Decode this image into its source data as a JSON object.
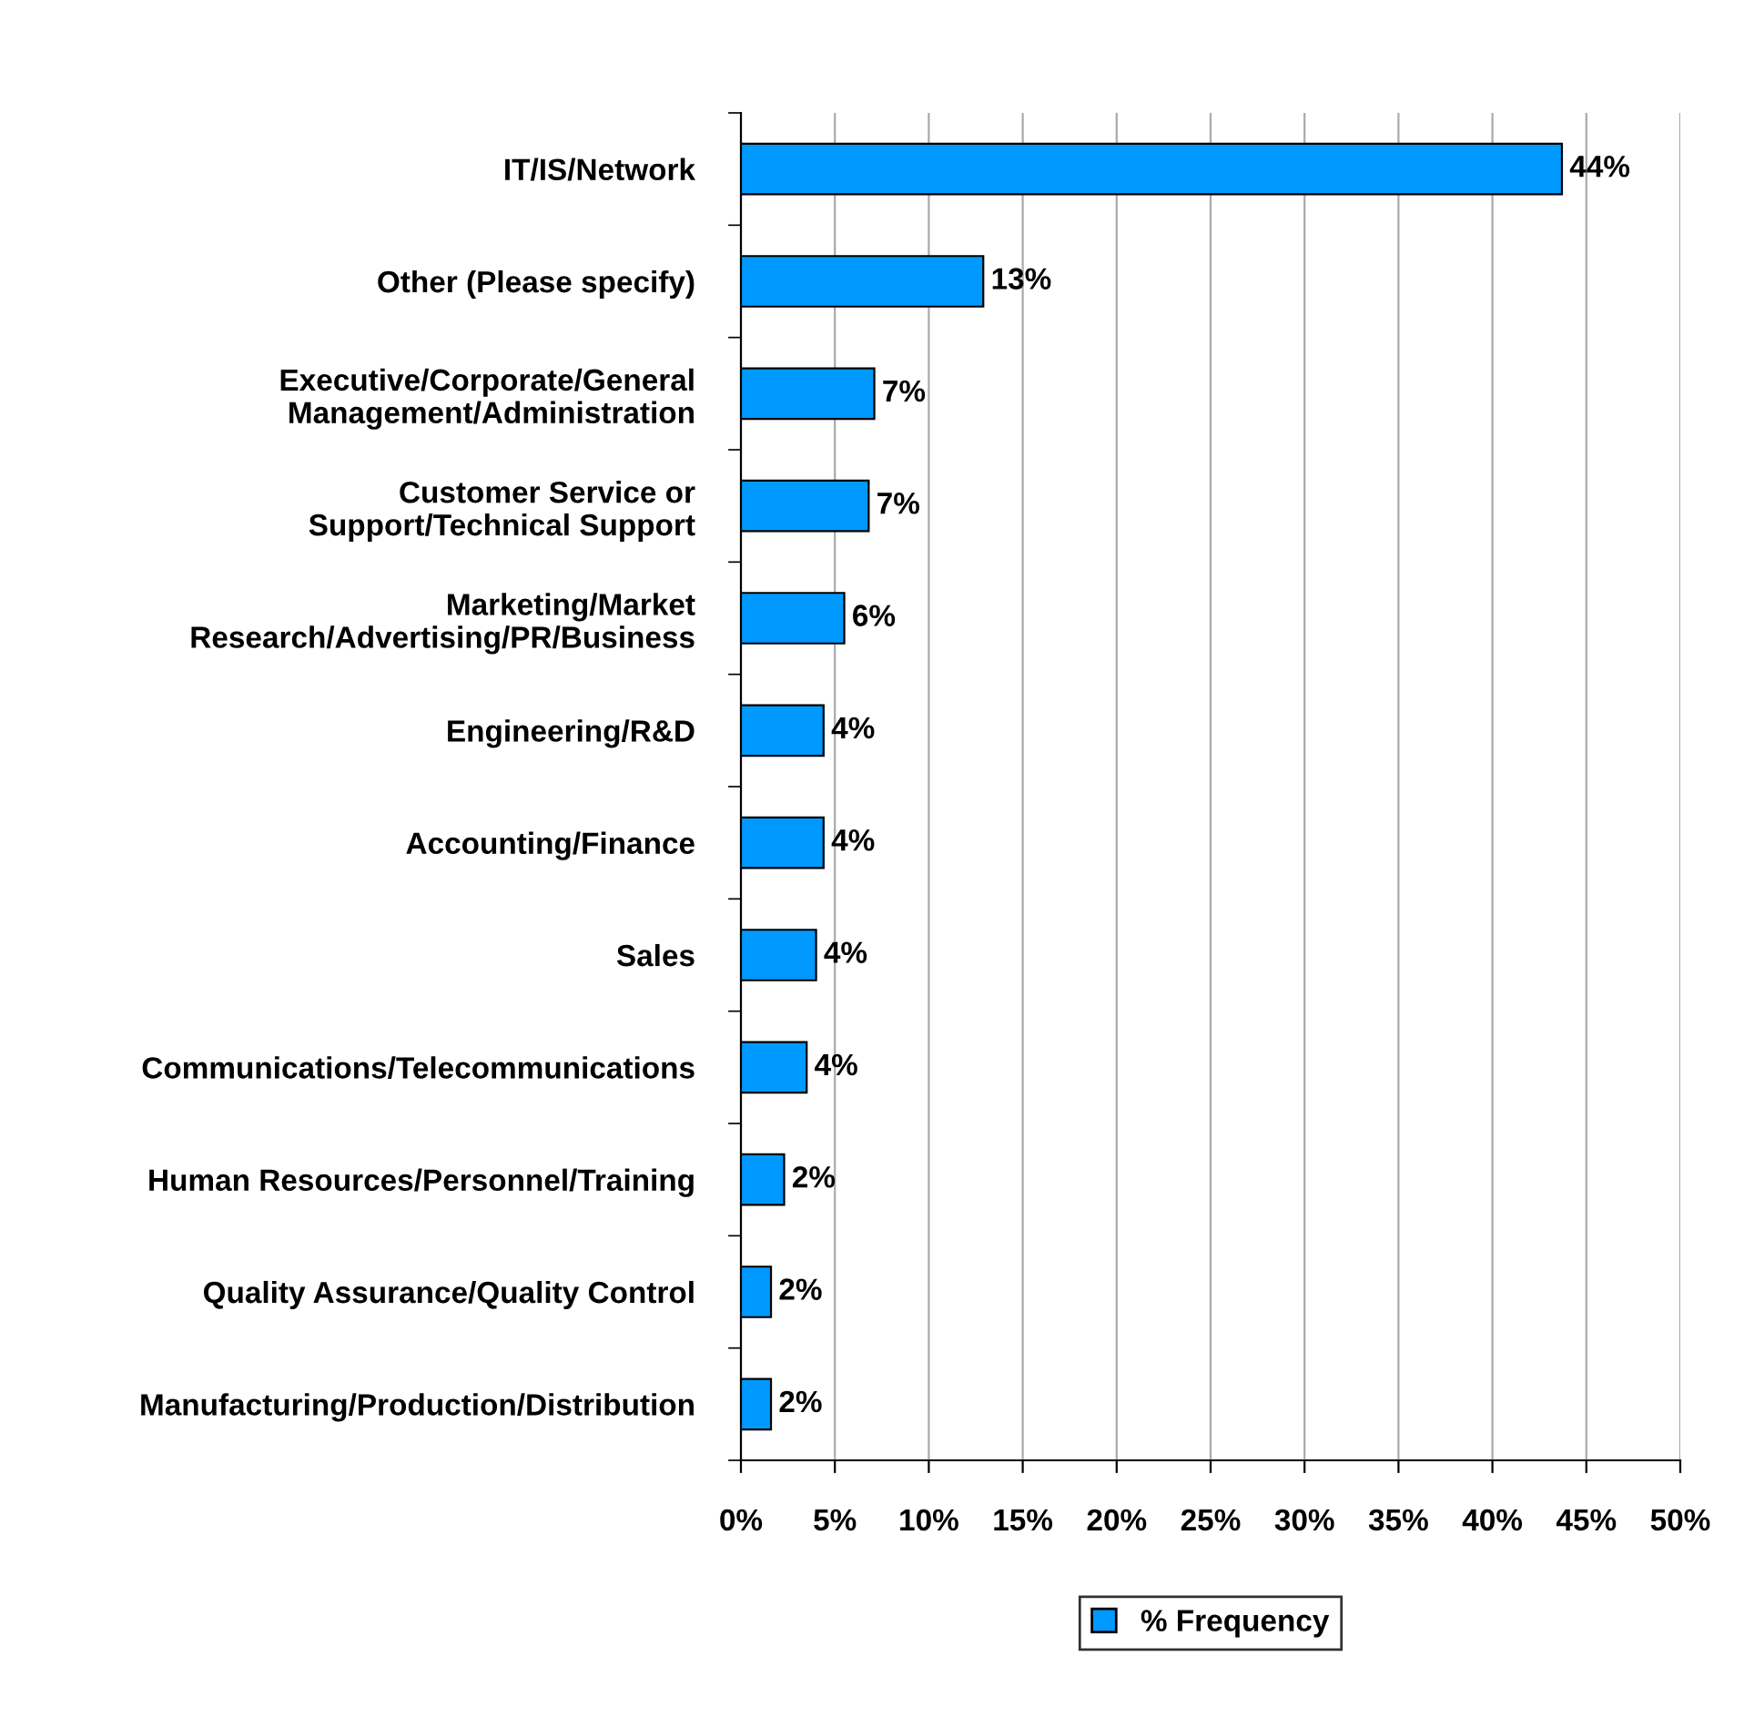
{
  "chart_data": {
    "type": "bar",
    "orientation": "horizontal",
    "categories": [
      "IT/IS/Network",
      "Other (Please specify)",
      "Executive/Corporate/General\nManagement/Administration",
      "Customer Service or\nSupport/Technical Support",
      "Marketing/Market\nResearch/Advertising/PR/Business",
      "Engineering/R&D",
      "Accounting/Finance",
      "Sales",
      "Communications/Telecommunications",
      "Human Resources/Personnel/Training",
      "Quality Assurance/Quality Control",
      "Manufacturing/Production/Distribution"
    ],
    "series": [
      {
        "name": "% Frequency",
        "color": "#0099ff",
        "values": [
          43.7,
          12.9,
          7.1,
          6.8,
          5.5,
          4.4,
          4.4,
          4.0,
          3.5,
          2.3,
          1.6,
          1.6
        ],
        "value_labels": [
          "44%",
          "13%",
          "7%",
          "7%",
          "6%",
          "4%",
          "4%",
          "4%",
          "4%",
          "2%",
          "2%",
          "2%"
        ]
      }
    ],
    "xlim": [
      0,
      50
    ],
    "xticks": [
      {
        "value": 0,
        "label": "0%"
      },
      {
        "value": 5,
        "label": "5%"
      },
      {
        "value": 10,
        "label": "10%"
      },
      {
        "value": 15,
        "label": "15%"
      },
      {
        "value": 20,
        "label": "20%"
      },
      {
        "value": 25,
        "label": "25%"
      },
      {
        "value": 30,
        "label": "30%"
      },
      {
        "value": 35,
        "label": "35%"
      },
      {
        "value": 40,
        "label": "40%"
      },
      {
        "value": 45,
        "label": "45%"
      },
      {
        "value": 50,
        "label": "50%"
      }
    ],
    "grid": "x",
    "legend": "bottom"
  }
}
